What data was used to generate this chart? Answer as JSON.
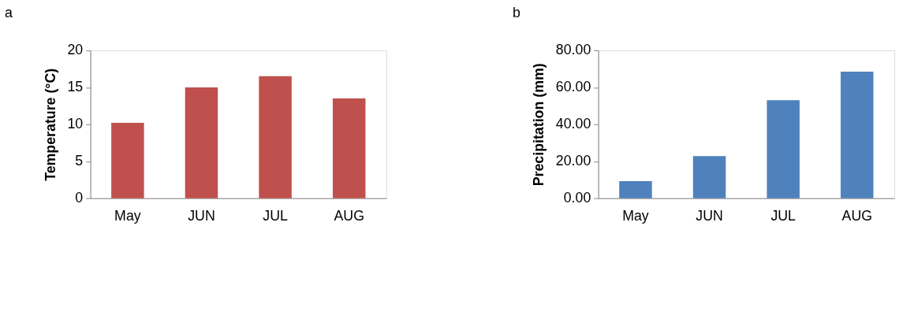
{
  "chart_data": [
    {
      "type": "bar",
      "title": "a",
      "ylabel": "Temperature (°C)",
      "categories": [
        "May",
        "JUN",
        "JUL",
        "AUG"
      ],
      "values": [
        10.2,
        15.0,
        16.5,
        13.5
      ],
      "color": "#c0504d",
      "ylim": [
        0,
        20
      ],
      "yticks": [
        0,
        5,
        10,
        15,
        20
      ],
      "grid": false
    },
    {
      "type": "bar",
      "title": "b",
      "ylabel": "Precipitation (mm)",
      "categories": [
        "May",
        "JUN",
        "JUL",
        "AUG"
      ],
      "values": [
        9.3,
        22.8,
        53.0,
        68.5
      ],
      "color": "#4f81bd",
      "ylim": [
        0,
        80
      ],
      "yticks": [
        {
          "value": 0,
          "label": "0.00"
        },
        {
          "value": 20,
          "label": "20.00"
        },
        {
          "value": 40,
          "label": "40.00"
        },
        {
          "value": 60,
          "label": "60.00"
        },
        {
          "value": 80,
          "label": "80.00"
        }
      ],
      "grid": false
    }
  ]
}
